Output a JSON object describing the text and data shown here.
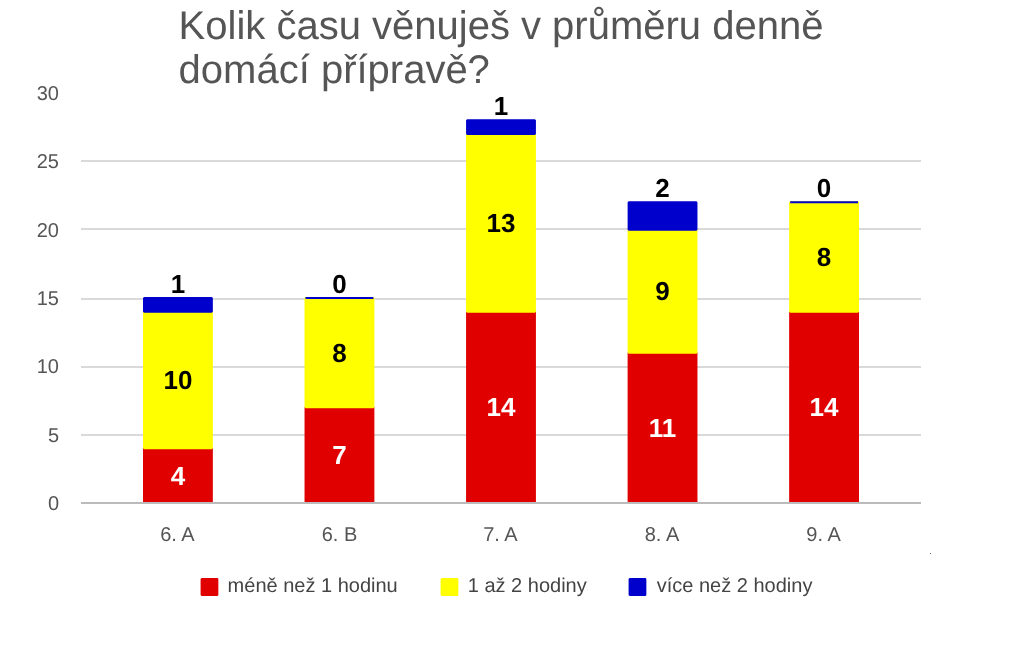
{
  "chart_data": {
    "type": "bar",
    "title": "Kolik času věnuješ v průměru denně\ndomácí přípravě?",
    "categories": [
      "6. A",
      "6. B",
      "7. A",
      "8. A",
      "9. A"
    ],
    "stacked": true,
    "series": [
      {
        "name": "méně než 1 hodinu",
        "color": "#e00000",
        "values": [
          4,
          7,
          14,
          11,
          14
        ]
      },
      {
        "name": "1 až 2 hodiny",
        "color": "#ffff00",
        "values": [
          10,
          8,
          13,
          9,
          8
        ]
      },
      {
        "name": "více než 2 hodiny",
        "color": "#0000cc",
        "values": [
          1,
          0,
          1,
          2,
          0
        ]
      }
    ],
    "ylim": [
      0,
      30
    ],
    "yticks": [
      0,
      5,
      10,
      15,
      20,
      25,
      30
    ],
    "grid": "y",
    "legend": "bottom",
    "data_labels": true
  }
}
